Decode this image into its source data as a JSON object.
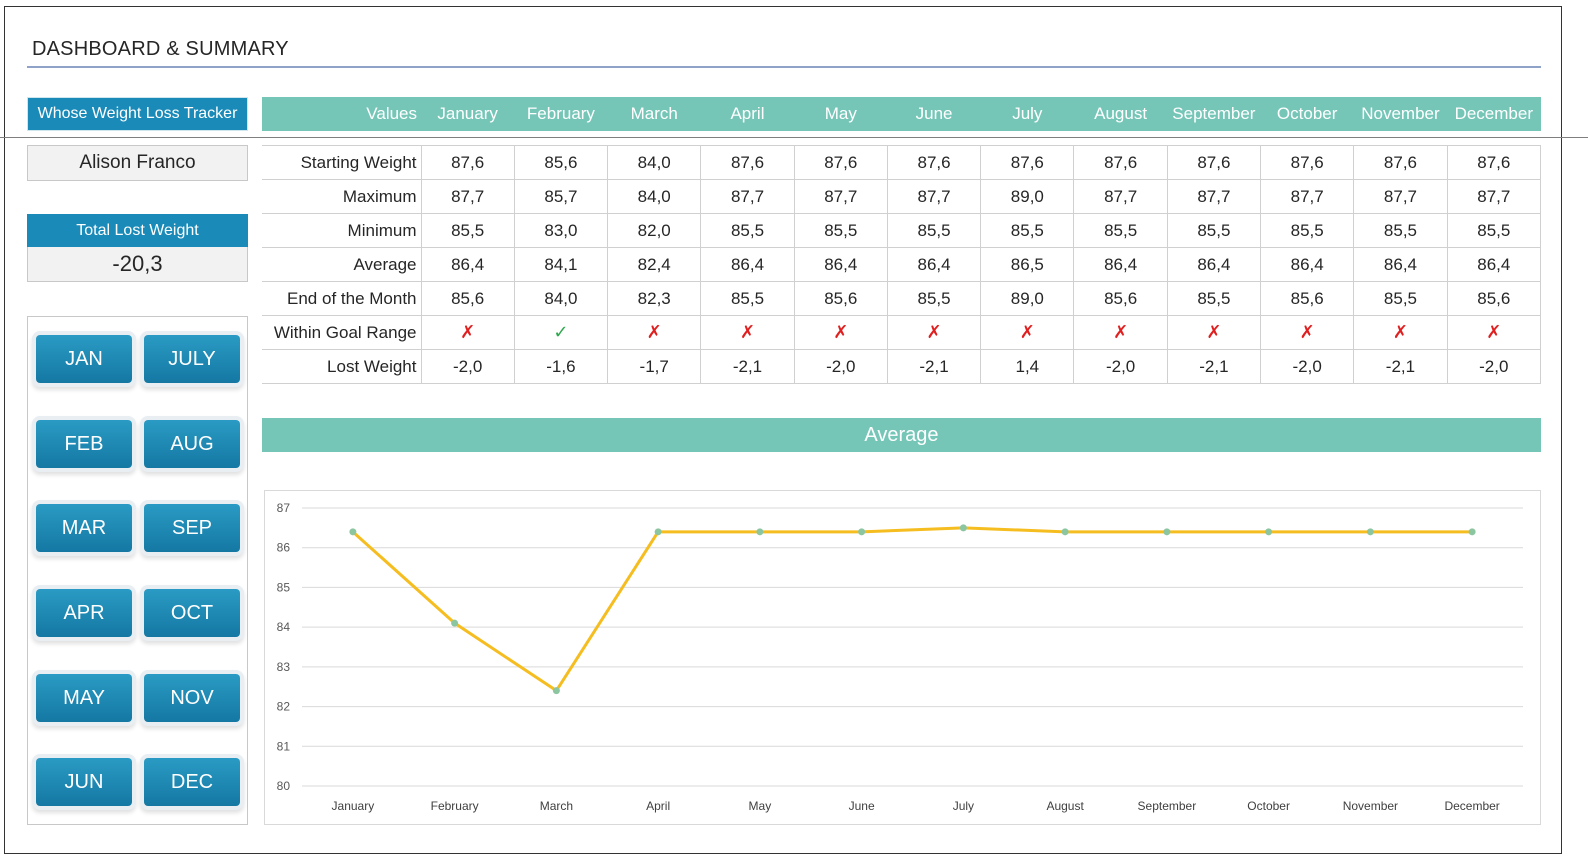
{
  "page": {
    "title": "DASHBOARD & SUMMARY"
  },
  "sidebar": {
    "tracker_label": "Whose Weight Loss Tracker",
    "user_name": "Alison Franco",
    "total_lost_label": "Total Lost Weight",
    "total_lost_value": "-20,3",
    "months_left": [
      "JAN",
      "FEB",
      "MAR",
      "APR",
      "MAY",
      "JUN"
    ],
    "months_right": [
      "JULY",
      "AUG",
      "SEP",
      "OCT",
      "NOV",
      "DEC"
    ]
  },
  "table": {
    "header_first": "Values",
    "months": [
      "January",
      "February",
      "March",
      "April",
      "May",
      "June",
      "July",
      "August",
      "September",
      "October",
      "November",
      "December"
    ],
    "rows": [
      {
        "label": "Starting Weight",
        "values": [
          "87,6",
          "85,6",
          "84,0",
          "87,6",
          "87,6",
          "87,6",
          "87,6",
          "87,6",
          "87,6",
          "87,6",
          "87,6",
          "87,6"
        ]
      },
      {
        "label": "Maximum",
        "values": [
          "87,7",
          "85,7",
          "84,0",
          "87,7",
          "87,7",
          "87,7",
          "89,0",
          "87,7",
          "87,7",
          "87,7",
          "87,7",
          "87,7"
        ]
      },
      {
        "label": "Minimum",
        "values": [
          "85,5",
          "83,0",
          "82,0",
          "85,5",
          "85,5",
          "85,5",
          "85,5",
          "85,5",
          "85,5",
          "85,5",
          "85,5",
          "85,5"
        ]
      },
      {
        "label": "Average",
        "values": [
          "86,4",
          "84,1",
          "82,4",
          "86,4",
          "86,4",
          "86,4",
          "86,5",
          "86,4",
          "86,4",
          "86,4",
          "86,4",
          "86,4"
        ]
      },
      {
        "label": "End of the Month",
        "values": [
          "85,6",
          "84,0",
          "82,3",
          "85,5",
          "85,6",
          "85,5",
          "89,0",
          "85,6",
          "85,5",
          "85,6",
          "85,5",
          "85,6"
        ]
      },
      {
        "label": "Within Goal Range",
        "values": [
          "✗",
          "✓",
          "✗",
          "✗",
          "✗",
          "✗",
          "✗",
          "✗",
          "✗",
          "✗",
          "✗",
          "✗"
        ]
      },
      {
        "label": "Lost Weight",
        "values": [
          "-2,0",
          "-1,6",
          "-1,7",
          "-2,1",
          "-2,0",
          "-2,1",
          "1,4",
          "-2,0",
          "-2,1",
          "-2,0",
          "-2,1",
          "-2,0"
        ]
      }
    ]
  },
  "chart_banner": "Average",
  "chart_data": {
    "type": "line",
    "categories": [
      "January",
      "February",
      "March",
      "April",
      "May",
      "June",
      "July",
      "August",
      "September",
      "October",
      "November",
      "December"
    ],
    "series": [
      {
        "values": [
          86.4,
          84.1,
          82.4,
          86.4,
          86.4,
          86.4,
          86.5,
          86.4,
          86.4,
          86.4,
          86.4,
          86.4
        ]
      }
    ],
    "ylim": [
      80,
      87
    ],
    "yticks": [
      80,
      81,
      82,
      83,
      84,
      85,
      86,
      87
    ],
    "grid": true,
    "line_color": "#f5bd1f",
    "marker_color": "#8cc6a0"
  },
  "colors": {
    "accent_teal": "#76c6b8",
    "accent_blue": "#1a8ab8",
    "check_green": "#2fa84f",
    "cross_red": "#e02020"
  }
}
